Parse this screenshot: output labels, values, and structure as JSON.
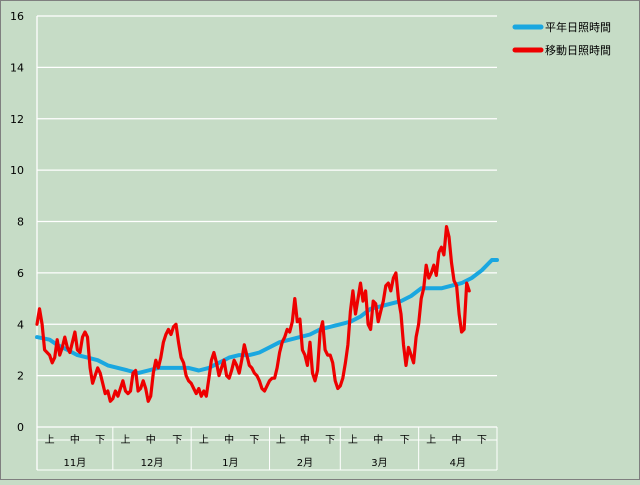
{
  "colors": {
    "background": "#c6dcc6",
    "grid": "#ffffff",
    "axis_text": "#000000",
    "normal_series": "#1aa7e0",
    "moving_series": "#ee0000"
  },
  "chart_data": {
    "type": "line",
    "title": "",
    "xlabel": "",
    "ylabel": "",
    "ylim": [
      0,
      16
    ],
    "yticks": [
      0,
      2,
      4,
      6,
      8,
      10,
      12,
      14,
      16
    ],
    "grid": true,
    "legend_position": "top-right",
    "xlim": [
      0,
      182
    ],
    "months": [
      {
        "label": "11月",
        "start": 0,
        "end": 30
      },
      {
        "label": "12月",
        "start": 30,
        "end": 61
      },
      {
        "label": "1月",
        "start": 61,
        "end": 92
      },
      {
        "label": "2月",
        "start": 92,
        "end": 120
      },
      {
        "label": "3月",
        "start": 120,
        "end": 151
      },
      {
        "label": "4月",
        "start": 151,
        "end": 182
      }
    ],
    "xticks": [
      {
        "x": 5,
        "label": "上"
      },
      {
        "x": 15,
        "label": "中"
      },
      {
        "x": 25,
        "label": "下"
      },
      {
        "x": 35,
        "label": "上"
      },
      {
        "x": 45,
        "label": "中"
      },
      {
        "x": 55.5,
        "label": "下"
      },
      {
        "x": 66,
        "label": "上"
      },
      {
        "x": 76,
        "label": "中"
      },
      {
        "x": 86,
        "label": "下"
      },
      {
        "x": 96.5,
        "label": "上"
      },
      {
        "x": 106,
        "label": "中"
      },
      {
        "x": 116,
        "label": "下"
      },
      {
        "x": 125,
        "label": "上"
      },
      {
        "x": 135,
        "label": "中"
      },
      {
        "x": 145.5,
        "label": "下"
      },
      {
        "x": 156,
        "label": "上"
      },
      {
        "x": 166,
        "label": "中"
      },
      {
        "x": 176,
        "label": "下"
      }
    ],
    "series": [
      {
        "name": "平年日照時間",
        "color": "#1aa7e0",
        "points": [
          [
            0,
            3.5
          ],
          [
            5,
            3.4
          ],
          [
            8,
            3.2
          ],
          [
            12,
            3.0
          ],
          [
            16,
            2.8
          ],
          [
            20,
            2.7
          ],
          [
            24,
            2.6
          ],
          [
            28,
            2.4
          ],
          [
            32,
            2.3
          ],
          [
            36,
            2.2
          ],
          [
            40,
            2.1
          ],
          [
            44,
            2.2
          ],
          [
            48,
            2.3
          ],
          [
            52,
            2.3
          ],
          [
            56,
            2.3
          ],
          [
            60,
            2.3
          ],
          [
            64,
            2.2
          ],
          [
            68,
            2.3
          ],
          [
            72,
            2.5
          ],
          [
            76,
            2.7
          ],
          [
            80,
            2.8
          ],
          [
            84,
            2.8
          ],
          [
            88,
            2.9
          ],
          [
            92,
            3.1
          ],
          [
            96,
            3.3
          ],
          [
            100,
            3.4
          ],
          [
            104,
            3.5
          ],
          [
            108,
            3.6
          ],
          [
            112,
            3.8
          ],
          [
            116,
            3.9
          ],
          [
            120,
            4.0
          ],
          [
            124,
            4.1
          ],
          [
            128,
            4.3
          ],
          [
            132,
            4.6
          ],
          [
            136,
            4.7
          ],
          [
            140,
            4.8
          ],
          [
            144,
            4.9
          ],
          [
            148,
            5.1
          ],
          [
            152,
            5.4
          ],
          [
            156,
            5.4
          ],
          [
            160,
            5.4
          ],
          [
            164,
            5.5
          ],
          [
            168,
            5.6
          ],
          [
            172,
            5.8
          ],
          [
            176,
            6.1
          ],
          [
            180,
            6.5
          ],
          [
            182,
            6.5
          ]
        ]
      },
      {
        "name": "移動日照時間",
        "color": "#ee0000",
        "points": [
          [
            0,
            4.0
          ],
          [
            1,
            4.6
          ],
          [
            2,
            4.0
          ],
          [
            3,
            3.0
          ],
          [
            4,
            2.9
          ],
          [
            5,
            2.8
          ],
          [
            6,
            2.5
          ],
          [
            7,
            2.7
          ],
          [
            8,
            3.4
          ],
          [
            9,
            2.8
          ],
          [
            10,
            3.1
          ],
          [
            11,
            3.5
          ],
          [
            12,
            3.1
          ],
          [
            13,
            2.9
          ],
          [
            14,
            3.3
          ],
          [
            15,
            3.7
          ],
          [
            16,
            3.0
          ],
          [
            17,
            2.9
          ],
          [
            18,
            3.5
          ],
          [
            19,
            3.7
          ],
          [
            20,
            3.5
          ],
          [
            21,
            2.3
          ],
          [
            22,
            1.7
          ],
          [
            23,
            2.0
          ],
          [
            24,
            2.3
          ],
          [
            25,
            2.1
          ],
          [
            26,
            1.7
          ],
          [
            27,
            1.3
          ],
          [
            28,
            1.4
          ],
          [
            29,
            1.0
          ],
          [
            30,
            1.1
          ],
          [
            31,
            1.4
          ],
          [
            32,
            1.2
          ],
          [
            33,
            1.5
          ],
          [
            34,
            1.8
          ],
          [
            35,
            1.4
          ],
          [
            36,
            1.3
          ],
          [
            37,
            1.4
          ],
          [
            38,
            2.1
          ],
          [
            39,
            2.2
          ],
          [
            40,
            1.4
          ],
          [
            41,
            1.5
          ],
          [
            42,
            1.8
          ],
          [
            43,
            1.5
          ],
          [
            44,
            1.0
          ],
          [
            45,
            1.2
          ],
          [
            46,
            2.1
          ],
          [
            47,
            2.6
          ],
          [
            48,
            2.3
          ],
          [
            49,
            2.7
          ],
          [
            50,
            3.3
          ],
          [
            51,
            3.6
          ],
          [
            52,
            3.8
          ],
          [
            53,
            3.6
          ],
          [
            54,
            3.9
          ],
          [
            55,
            4.0
          ],
          [
            56,
            3.3
          ],
          [
            57,
            2.7
          ],
          [
            58,
            2.5
          ],
          [
            59,
            2.0
          ],
          [
            60,
            1.8
          ],
          [
            61,
            1.7
          ],
          [
            62,
            1.5
          ],
          [
            63,
            1.3
          ],
          [
            64,
            1.5
          ],
          [
            65,
            1.2
          ],
          [
            66,
            1.4
          ],
          [
            67,
            1.2
          ],
          [
            68,
            1.9
          ],
          [
            69,
            2.6
          ],
          [
            70,
            2.9
          ],
          [
            71,
            2.5
          ],
          [
            72,
            2.0
          ],
          [
            73,
            2.3
          ],
          [
            74,
            2.6
          ],
          [
            75,
            2.0
          ],
          [
            76,
            1.9
          ],
          [
            77,
            2.2
          ],
          [
            78,
            2.6
          ],
          [
            79,
            2.4
          ],
          [
            80,
            2.1
          ],
          [
            81,
            2.6
          ],
          [
            82,
            3.2
          ],
          [
            83,
            2.8
          ],
          [
            84,
            2.4
          ],
          [
            85,
            2.3
          ],
          [
            86,
            2.1
          ],
          [
            87,
            2.0
          ],
          [
            88,
            1.8
          ],
          [
            89,
            1.5
          ],
          [
            90,
            1.4
          ],
          [
            91,
            1.6
          ],
          [
            92,
            1.8
          ],
          [
            93,
            1.9
          ],
          [
            94,
            1.9
          ],
          [
            95,
            2.3
          ],
          [
            96,
            2.9
          ],
          [
            97,
            3.3
          ],
          [
            98,
            3.5
          ],
          [
            99,
            3.8
          ],
          [
            100,
            3.7
          ],
          [
            101,
            4.1
          ],
          [
            102,
            5.0
          ],
          [
            103,
            4.1
          ],
          [
            104,
            4.2
          ],
          [
            105,
            3.0
          ],
          [
            106,
            2.8
          ],
          [
            107,
            2.4
          ],
          [
            108,
            3.3
          ],
          [
            109,
            2.1
          ],
          [
            110,
            1.8
          ],
          [
            111,
            2.2
          ],
          [
            112,
            3.7
          ],
          [
            113,
            4.1
          ],
          [
            114,
            3.0
          ],
          [
            115,
            2.8
          ],
          [
            116,
            2.8
          ],
          [
            117,
            2.5
          ],
          [
            118,
            1.8
          ],
          [
            119,
            1.5
          ],
          [
            120,
            1.6
          ],
          [
            121,
            1.9
          ],
          [
            122,
            2.5
          ],
          [
            123,
            3.2
          ],
          [
            124,
            4.5
          ],
          [
            125,
            5.3
          ],
          [
            126,
            4.4
          ],
          [
            127,
            5.0
          ],
          [
            128,
            5.6
          ],
          [
            129,
            4.9
          ],
          [
            130,
            5.3
          ],
          [
            131,
            4.0
          ],
          [
            132,
            3.8
          ],
          [
            133,
            4.9
          ],
          [
            134,
            4.8
          ],
          [
            135,
            4.1
          ],
          [
            136,
            4.5
          ],
          [
            137,
            4.9
          ],
          [
            138,
            5.5
          ],
          [
            139,
            5.6
          ],
          [
            140,
            5.3
          ],
          [
            141,
            5.8
          ],
          [
            142,
            6.0
          ],
          [
            143,
            5.0
          ],
          [
            144,
            4.4
          ],
          [
            145,
            3.2
          ],
          [
            146,
            2.4
          ],
          [
            147,
            3.1
          ],
          [
            148,
            2.8
          ],
          [
            149,
            2.5
          ],
          [
            150,
            3.5
          ],
          [
            151,
            4.0
          ],
          [
            152,
            5.0
          ],
          [
            153,
            5.4
          ],
          [
            154,
            6.3
          ],
          [
            155,
            5.8
          ],
          [
            156,
            6.0
          ],
          [
            157,
            6.3
          ],
          [
            158,
            5.9
          ],
          [
            159,
            6.8
          ],
          [
            160,
            7.0
          ],
          [
            161,
            6.7
          ],
          [
            162,
            7.8
          ],
          [
            163,
            7.4
          ],
          [
            164,
            6.4
          ],
          [
            165,
            5.7
          ],
          [
            166,
            5.5
          ],
          [
            167,
            4.4
          ],
          [
            168,
            3.7
          ],
          [
            169,
            3.8
          ],
          [
            170,
            5.6
          ],
          [
            171,
            5.3
          ]
        ]
      }
    ]
  }
}
